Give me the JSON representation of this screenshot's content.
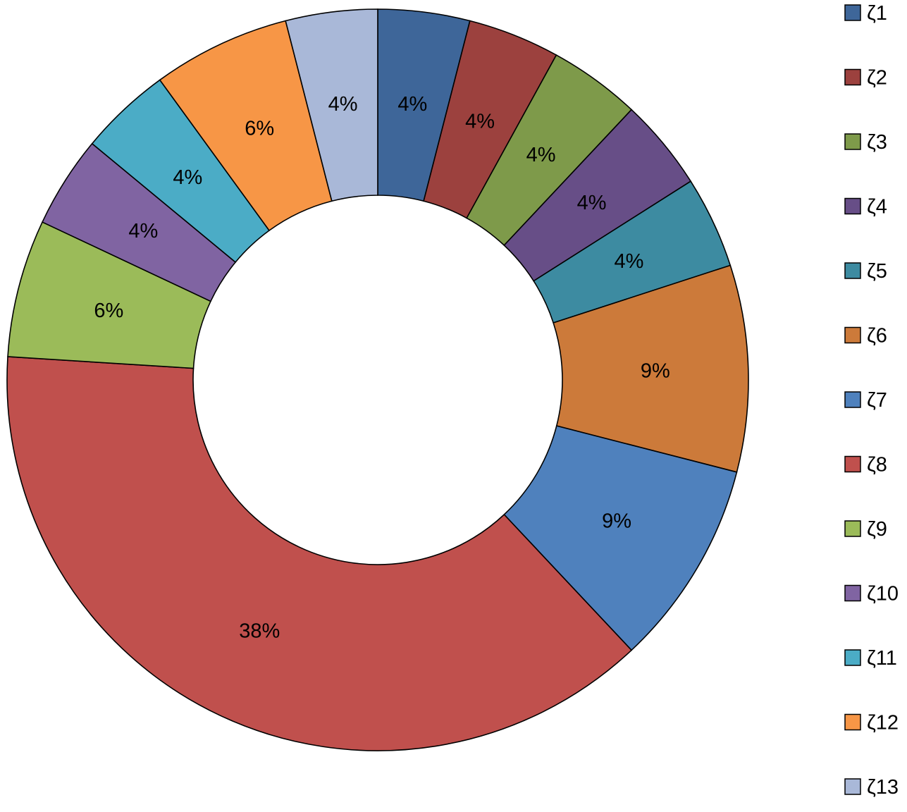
{
  "chart_data": {
    "type": "pie",
    "donut": true,
    "categories": [
      "ζ1",
      "ζ2",
      "ζ3",
      "ζ4",
      "ζ5",
      "ζ6",
      "ζ7",
      "ζ8",
      "ζ9",
      "ζ10",
      "ζ11",
      "ζ12",
      "ζ13"
    ],
    "values": [
      4,
      4,
      4,
      4,
      4,
      9,
      9,
      38,
      6,
      4,
      4,
      6,
      4
    ],
    "labels": [
      "4%",
      "4%",
      "4%",
      "4%",
      "4%",
      "9%",
      "9%",
      "38%",
      "6%",
      "4%",
      "4%",
      "6%",
      "4%"
    ],
    "colors": [
      "#3E6699",
      "#9C413E",
      "#7E9A4A",
      "#674E87",
      "#3D8BA1",
      "#CC7A3A",
      "#4F81BD",
      "#C0504D",
      "#9BBB59",
      "#8064A2",
      "#4BACC6",
      "#F79646",
      "#A9B8D8"
    ],
    "legend_position": "right"
  }
}
